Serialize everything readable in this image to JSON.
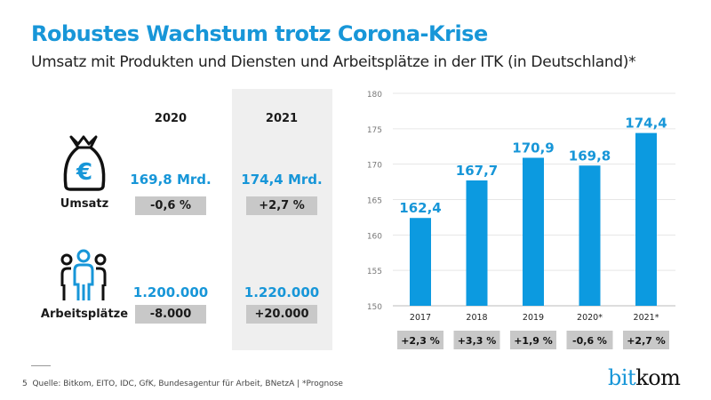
{
  "title": "Robustes Wachstum trotz Corona-Krise",
  "subtitle": "Umsatz mit Produkten und Diensten und Arbeitsplätze in der ITK (in Deutschland)*",
  "table": {
    "years": [
      "2020",
      "2021"
    ],
    "rows": [
      {
        "label": "Umsatz",
        "icon": "money-bag-euro-icon",
        "values": [
          "169,8 Mrd.",
          "174,4 Mrd."
        ],
        "changes": [
          "-0,6 %",
          "+2,7 %"
        ]
      },
      {
        "label": "Arbeitsplätze",
        "icon": "people-group-icon",
        "values": [
          "1.200.000",
          "1.220.000"
        ],
        "changes": [
          "-8.000",
          "+20.000"
        ]
      }
    ]
  },
  "chart_data": {
    "type": "bar",
    "categories": [
      "2017",
      "2018",
      "2019",
      "2020*",
      "2021*"
    ],
    "values": [
      162.4,
      167.7,
      170.9,
      169.8,
      174.4
    ],
    "data_labels": [
      "162,4",
      "167,7",
      "170,9",
      "169,8",
      "174,4"
    ],
    "changes": [
      "+2,3 %",
      "+3,3 %",
      "+1,9 %",
      "-0,6 %",
      "+2,7 %"
    ],
    "ylim": [
      150,
      180
    ],
    "yticks": [
      "150",
      "155",
      "160",
      "165",
      "170",
      "175",
      "180"
    ],
    "grid": true,
    "bar_color": "#0c9ae0"
  },
  "footer": {
    "page": "5",
    "source": "Quelle: Bitkom, EITO, IDC, GfK, Bundesagentur für Arbeit, BNetzA | *Prognose"
  },
  "logo": {
    "part1": "bit",
    "part2": "kom"
  },
  "colors": {
    "accent": "#1796d8",
    "box": "#c8c8c8",
    "highlight": "#efefef"
  }
}
